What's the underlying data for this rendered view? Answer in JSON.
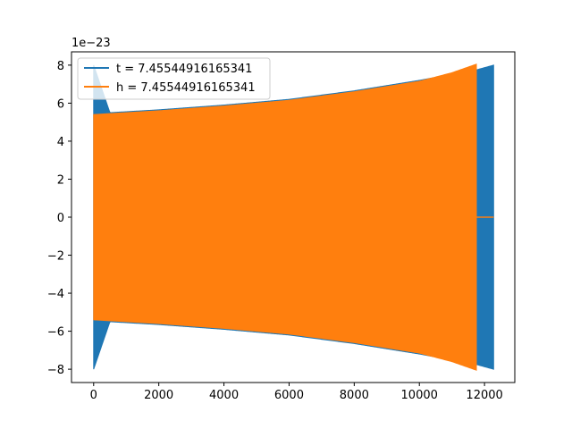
{
  "chart_data": {
    "type": "line",
    "title": "",
    "xlabel": "",
    "ylabel": "",
    "offset_text": "1e−23",
    "xlim": [
      -680,
      12930
    ],
    "ylim": [
      -8.7,
      8.7
    ],
    "x_ticks": [
      0,
      2000,
      4000,
      6000,
      8000,
      10000,
      12000
    ],
    "y_ticks": [
      -8,
      -6,
      -4,
      -2,
      0,
      2,
      4,
      6,
      8
    ],
    "grid": false,
    "legend_position": "top-left",
    "series": [
      {
        "name": "t = 7.45544916165341",
        "color": "#1f77b4",
        "x_start": 0,
        "x_end": 12280,
        "envelope": [
          {
            "x": 0,
            "amp": 8.0
          },
          {
            "x": 500,
            "amp": 5.5
          },
          {
            "x": 2000,
            "amp": 5.65
          },
          {
            "x": 4000,
            "amp": 5.9
          },
          {
            "x": 6000,
            "amp": 6.2
          },
          {
            "x": 8000,
            "amp": 6.65
          },
          {
            "x": 10000,
            "amp": 7.2
          },
          {
            "x": 11750,
            "amp": 7.75
          },
          {
            "x": 12280,
            "amp": 8.0
          }
        ]
      },
      {
        "name": "h = 7.45544916165341",
        "color": "#ff7f0e",
        "x_start": 0,
        "x_end": 11750,
        "tail": {
          "x_start": 11750,
          "x_end": 12280,
          "value": 0
        },
        "envelope": [
          {
            "x": 0,
            "amp": 5.4
          },
          {
            "x": 2000,
            "amp": 5.6
          },
          {
            "x": 4000,
            "amp": 5.85
          },
          {
            "x": 6000,
            "amp": 6.15
          },
          {
            "x": 8000,
            "amp": 6.6
          },
          {
            "x": 10000,
            "amp": 7.15
          },
          {
            "x": 11000,
            "amp": 7.6
          },
          {
            "x": 11750,
            "amp": 8.05
          }
        ]
      }
    ]
  }
}
